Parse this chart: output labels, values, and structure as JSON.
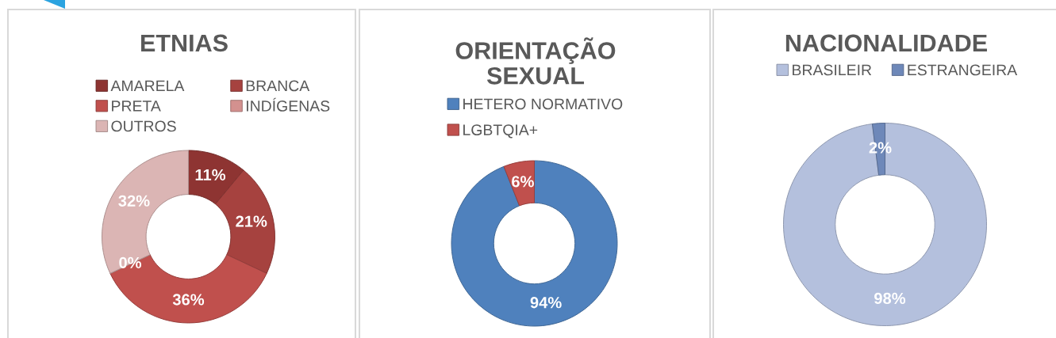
{
  "chart_data": [
    {
      "type": "donut",
      "title": "ETNIAS",
      "categories": [
        "AMARELA",
        "BRANCA",
        "PRETA",
        "INDÍGENAS",
        "OUTROS"
      ],
      "values": [
        11,
        21,
        36,
        0,
        32
      ],
      "colors": [
        "#8e3432",
        "#a6423f",
        "#c0504d",
        "#d3918f",
        "#dbb5b4"
      ],
      "value_labels": [
        "11%",
        "21%",
        "36%",
        "0%",
        "32%"
      ],
      "legend": "top"
    },
    {
      "type": "donut",
      "title": "ORIENTAÇÃO\nSEXUAL",
      "categories": [
        "HETERO NORMATIVO",
        "LGBTQIA+"
      ],
      "values": [
        94,
        6
      ],
      "colors": [
        "#4f81bd",
        "#c0504d"
      ],
      "value_labels": [
        "94%",
        "6%"
      ],
      "legend": "top"
    },
    {
      "type": "donut",
      "title": "NACIONALIDADE",
      "categories": [
        "BRASILEIR",
        "ESTRANGEIRA"
      ],
      "values": [
        98,
        2
      ],
      "colors": [
        "#b4c0dd",
        "#6e88b9"
      ],
      "value_labels": [
        "98%",
        "2%"
      ],
      "legend": "top"
    }
  ]
}
